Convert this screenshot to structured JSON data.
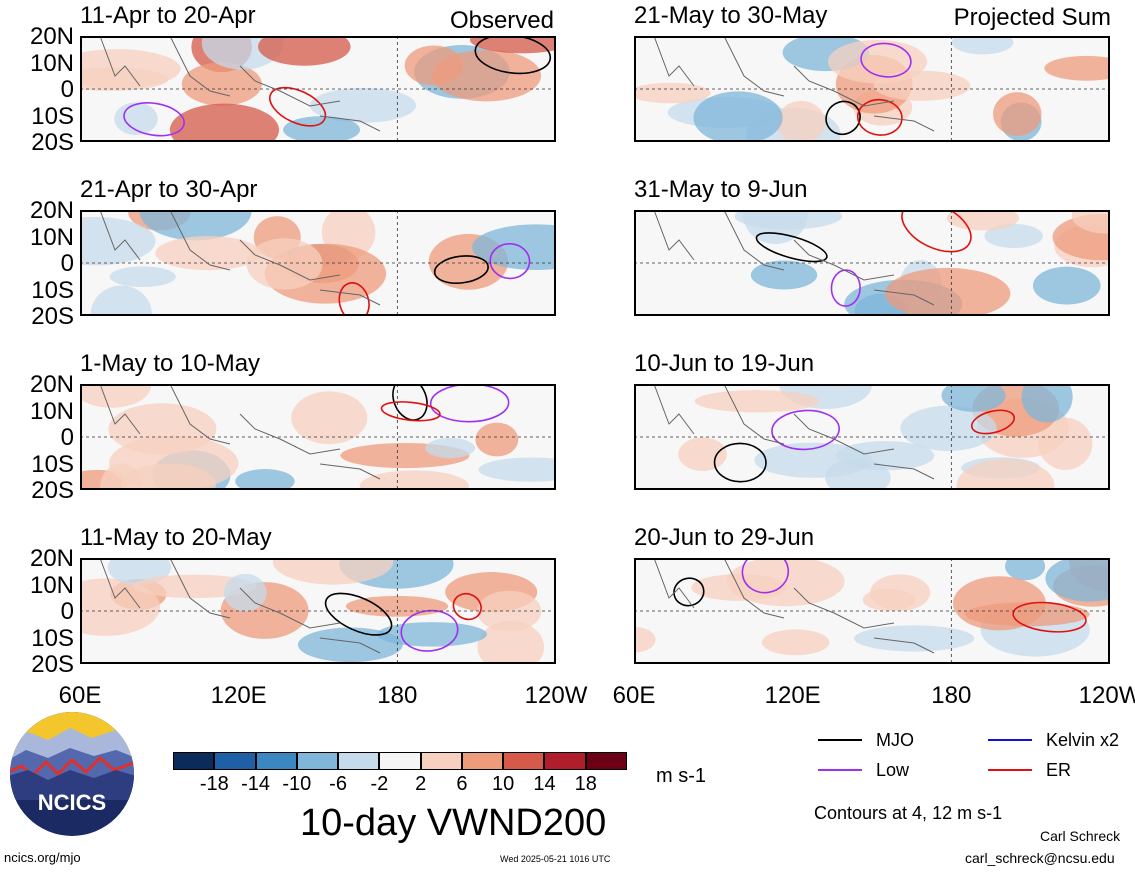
{
  "figure": {
    "main_title": "10-day VWND200",
    "units": "m s-1",
    "contour_note": "Contours at 4, 12 m s-1",
    "author": "Carl Schreck",
    "email": "carl_schreck@ncsu.edu",
    "website": "ncics.org/mjo",
    "timestamp": "Wed 2025-05-21 1016 UTC",
    "logo_text": "NCICS"
  },
  "panels_left_header": "Observed",
  "panels_right_header": "Projected Sum",
  "panels": [
    {
      "title": "11-Apr to 20-Apr"
    },
    {
      "title": "21-May to 30-May"
    },
    {
      "title": "21-Apr to 30-Apr"
    },
    {
      "title": "31-May to 9-Jun"
    },
    {
      "title": "1-May to 10-May"
    },
    {
      "title": "10-Jun to 19-Jun"
    },
    {
      "title": "11-May to 20-May"
    },
    {
      "title": "20-Jun to 29-Jun"
    }
  ],
  "chart_data": {
    "type": "heatmap",
    "title": "10-day VWND200",
    "y_ticks": [
      "20N",
      "10N",
      "0",
      "10S",
      "20S"
    ],
    "x_ticks": [
      "60E",
      "120E",
      "180",
      "120W"
    ],
    "ylim": [
      -20,
      20
    ],
    "xlim": [
      60,
      240
    ],
    "colorbar": {
      "labels": [
        "-18",
        "-14",
        "-10",
        "-6",
        "-2",
        "2",
        "6",
        "10",
        "14",
        "18"
      ],
      "colors": [
        "#0b2c5b",
        "#1f5fa6",
        "#3a87c2",
        "#7fb6d9",
        "#c5dbeb",
        "#f5f5f5",
        "#f7d0bf",
        "#ee9b7c",
        "#d65a4a",
        "#b01e2b",
        "#6b0016"
      ]
    },
    "legend": [
      {
        "name": "MJO",
        "color": "#000000"
      },
      {
        "name": "Kelvin x2",
        "color": "#1010e0"
      },
      {
        "name": "Low",
        "color": "#a030f0"
      },
      {
        "name": "ER",
        "color": "#e01010"
      }
    ]
  }
}
